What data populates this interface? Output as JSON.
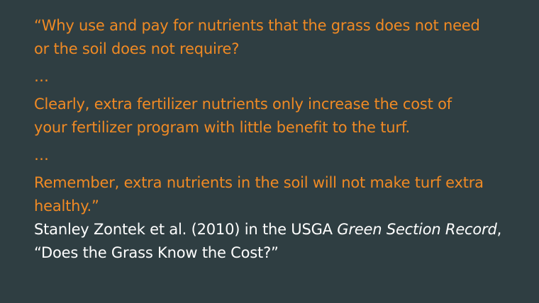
{
  "quote": {
    "block1": [
      "“Why use and pay for nutrients that the grass does not need",
      "or the soil does not require?"
    ],
    "ellipsis1": "…",
    "block2": [
      "Clearly, extra fertilizer nutrients only increase the cost of",
      "your fertilizer program with little benefit to the turf."
    ],
    "ellipsis2": "…",
    "block3": [
      "Remember, extra nutrients in the soil will not make turf extra",
      "healthy.”"
    ]
  },
  "attribution": {
    "prefix": "Stanley Zontek et al. (2010) in the USGA ",
    "publication": "Green Section Record",
    "suffix": ",",
    "title": "“Does the Grass Know the Cost?”"
  },
  "colors": {
    "background": "#2f3e42",
    "quote_text": "#f08a24",
    "attribution_text": "#ffffff"
  }
}
